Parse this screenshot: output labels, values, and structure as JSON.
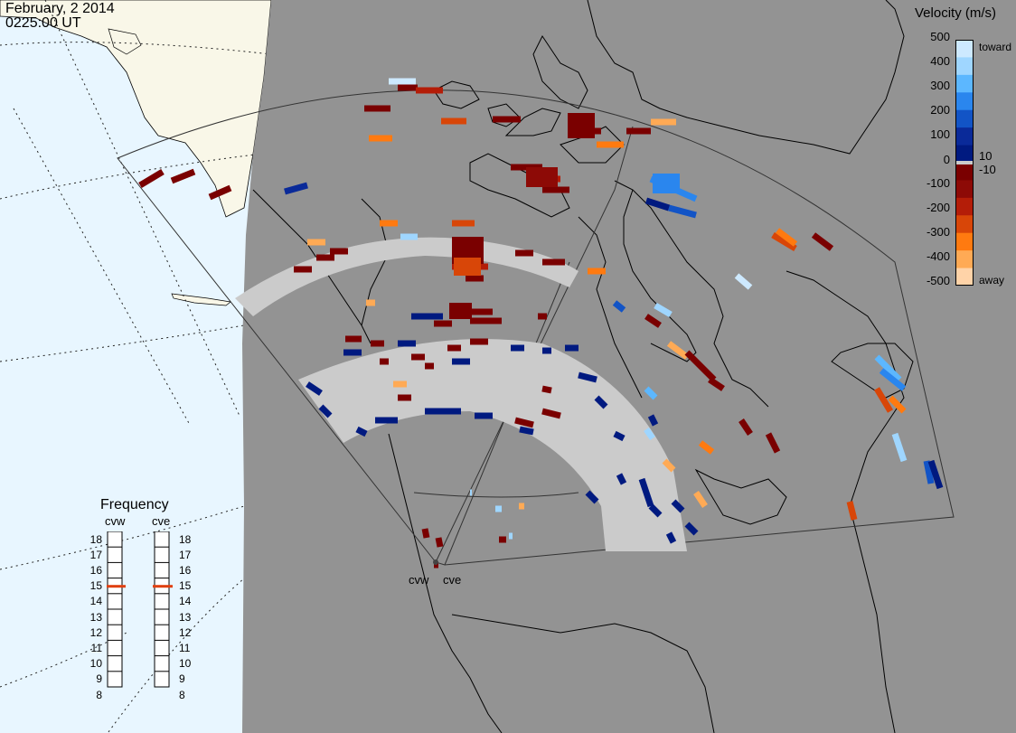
{
  "header": {
    "date": "February, 2 2014",
    "time": "0225:00 UT"
  },
  "colorbar": {
    "title": "Velocity (m/s)",
    "toward_label": "toward",
    "away_label": "away",
    "ticks": [
      "500",
      "400",
      "300",
      "200",
      "100",
      "10",
      "0",
      "-10",
      "-100",
      "-200",
      "-300",
      "-400",
      "-500"
    ],
    "colors": [
      "#cde9ff",
      "#9fd6ff",
      "#5cb7ff",
      "#2a86ee",
      "#1254c6",
      "#0a2a99",
      "#001a80",
      "#7a0000",
      "#8d0a06",
      "#b41d08",
      "#d84608",
      "#ff7a10",
      "#ffaa55",
      "#ffd3a8"
    ]
  },
  "frequency": {
    "title": "Frequency",
    "radars": [
      {
        "name": "cvw",
        "value": 15
      },
      {
        "name": "cve",
        "value": 15
      }
    ],
    "scale": [
      "18",
      "17",
      "16",
      "15",
      "14",
      "13",
      "12",
      "11",
      "10",
      "9",
      "8"
    ]
  },
  "map": {
    "colors": {
      "ocean": "#e8f6ff",
      "land_outside": "#f9f7e8",
      "background": "#939393",
      "ground_scatter": "#cbcbcb",
      "marker": "#e04010"
    },
    "radar_site_labels": [
      "cvw",
      "cve"
    ]
  }
}
